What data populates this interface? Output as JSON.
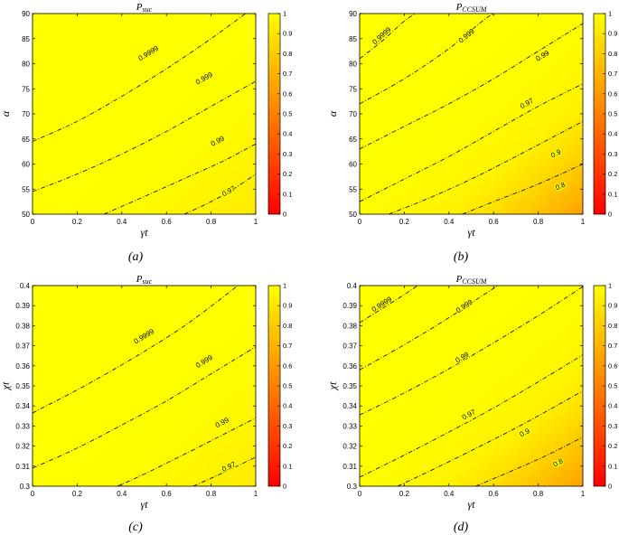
{
  "chart_data": [
    {
      "type": "contour",
      "title": "P_suc",
      "title_main": "P",
      "title_sub": "suc",
      "xlabel": "γt",
      "ylabel": "α",
      "caption": "(a)",
      "xlim": [
        0,
        1
      ],
      "ylim": [
        50,
        90
      ],
      "xticks": [
        0,
        0.2,
        0.4,
        0.6,
        0.8,
        1
      ],
      "xtick_labels": [
        "0",
        "0.2",
        "0.4",
        "0.6",
        "0.8",
        "1"
      ],
      "yticks": [
        50,
        55,
        60,
        65,
        70,
        75,
        80,
        85,
        90
      ],
      "ytick_labels": [
        "50",
        "55",
        "60",
        "65",
        "70",
        "75",
        "80",
        "85",
        "90"
      ],
      "colorbar": {
        "range": [
          0,
          1
        ],
        "ticks": [
          0,
          0.1,
          0.2,
          0.3,
          0.4,
          0.5,
          0.6,
          0.7,
          0.8,
          0.9,
          1
        ],
        "tick_labels": [
          "0",
          "0.1",
          "0.2",
          "0.3",
          "0.4",
          "0.5",
          "0.6",
          "0.7",
          "0.8",
          "0.9",
          "1"
        ],
        "colormap": "autumn",
        "low_color": "#ff0000",
        "high_color": "#ffff00"
      },
      "contours": [
        {
          "level": "0.9999",
          "points": [
            [
              0,
              64.5
            ],
            [
              0.2,
              68.5
            ],
            [
              0.4,
              73.5
            ],
            [
              0.6,
              79
            ],
            [
              0.8,
              85
            ],
            [
              1,
              91.5
            ]
          ],
          "label_at": [
            0.52,
            82
          ]
        },
        {
          "level": "0.999",
          "points": [
            [
              0,
              54.5
            ],
            [
              0.2,
              58
            ],
            [
              0.4,
              62
            ],
            [
              0.6,
              66.5
            ],
            [
              0.8,
              71.5
            ],
            [
              1,
              76.5
            ]
          ],
          "label_at": [
            0.77,
            77
          ]
        },
        {
          "level": "0.99",
          "points": [
            [
              0.32,
              50
            ],
            [
              0.5,
              53.5
            ],
            [
              0.7,
              57.5
            ],
            [
              0.85,
              60.5
            ],
            [
              1,
              64
            ]
          ],
          "label_at": [
            0.83,
            64.5
          ]
        },
        {
          "level": "0.97",
          "points": [
            [
              0.68,
              50
            ],
            [
              0.8,
              52.5
            ],
            [
              0.9,
              55
            ],
            [
              1,
              58
            ]
          ],
          "label_at": [
            0.88,
            54.5
          ]
        }
      ]
    },
    {
      "type": "contour",
      "title": "P_CCSUM",
      "title_main": "P",
      "title_sub": "CCSUM",
      "xlabel": "γt",
      "ylabel": "α",
      "caption": "(b)",
      "xlim": [
        0,
        1
      ],
      "ylim": [
        50,
        90
      ],
      "xticks": [
        0,
        0.2,
        0.4,
        0.6,
        0.8,
        1
      ],
      "xtick_labels": [
        "0",
        "0.2",
        "0.4",
        "0.6",
        "0.8",
        "1"
      ],
      "yticks": [
        50,
        55,
        60,
        65,
        70,
        75,
        80,
        85,
        90
      ],
      "ytick_labels": [
        "50",
        "55",
        "60",
        "65",
        "70",
        "75",
        "80",
        "85",
        "90"
      ],
      "colorbar": {
        "range": [
          0,
          1
        ],
        "ticks": [
          0,
          0.1,
          0.2,
          0.3,
          0.4,
          0.5,
          0.6,
          0.7,
          0.8,
          0.9,
          1
        ],
        "tick_labels": [
          "0",
          "0.1",
          "0.2",
          "0.3",
          "0.4",
          "0.5",
          "0.6",
          "0.7",
          "0.8",
          "0.9",
          "1"
        ],
        "colormap": "autumn",
        "low_color": "#ff0000",
        "high_color": "#ffff00"
      },
      "contours": [
        {
          "level": "0.9999",
          "points": [
            [
              0,
              81
            ],
            [
              0.1,
              84.5
            ],
            [
              0.2,
              88.5
            ],
            [
              0.25,
              90
            ]
          ],
          "label_at": [
            0.1,
            85.5
          ]
        },
        {
          "level": "0.999",
          "points": [
            [
              0,
              72
            ],
            [
              0.2,
              77
            ],
            [
              0.4,
              83
            ],
            [
              0.55,
              88.5
            ],
            [
              0.6,
              90
            ]
          ],
          "label_at": [
            0.48,
            85.5
          ]
        },
        {
          "level": "0.99",
          "points": [
            [
              0,
              63
            ],
            [
              0.2,
              67.5
            ],
            [
              0.4,
              72
            ],
            [
              0.6,
              77
            ],
            [
              0.8,
              82.5
            ],
            [
              1,
              88
            ]
          ],
          "label_at": [
            0.82,
            81.5
          ]
        },
        {
          "level": "0.97",
          "points": [
            [
              0,
              52.5
            ],
            [
              0.2,
              57
            ],
            [
              0.4,
              61.5
            ],
            [
              0.6,
              66.5
            ],
            [
              0.8,
              71.5
            ],
            [
              1,
              76
            ]
          ],
          "label_at": [
            0.75,
            72
          ]
        },
        {
          "level": "0.9",
          "points": [
            [
              0.13,
              50
            ],
            [
              0.3,
              53
            ],
            [
              0.5,
              57
            ],
            [
              0.7,
              61.5
            ],
            [
              0.85,
              65
            ],
            [
              1,
              68.5
            ]
          ],
          "label_at": [
            0.88,
            62
          ]
        },
        {
          "level": "0.8",
          "points": [
            [
              0.46,
              50
            ],
            [
              0.6,
              52.5
            ],
            [
              0.8,
              56
            ],
            [
              1,
              60
            ]
          ],
          "label_at": [
            0.9,
            55.5
          ]
        }
      ],
      "shading": "orange toward lower-right"
    },
    {
      "type": "contour",
      "title": "P_suc",
      "title_main": "P",
      "title_sub": "suc",
      "xlabel": "γt",
      "ylabel": "χt",
      "caption": "(c)",
      "xlim": [
        0,
        1
      ],
      "ylim": [
        0.3,
        0.4
      ],
      "xticks": [
        0,
        0.2,
        0.4,
        0.6,
        0.8,
        1
      ],
      "xtick_labels": [
        "0",
        "0.2",
        "0.4",
        "0.6",
        "0.8",
        "1"
      ],
      "yticks": [
        0.3,
        0.31,
        0.32,
        0.33,
        0.34,
        0.35,
        0.36,
        0.37,
        0.38,
        0.39,
        0.4
      ],
      "ytick_labels": [
        "0.3",
        "0.31",
        "0.32",
        "0.33",
        "0.34",
        "0.35",
        "0.36",
        "0.37",
        "0.38",
        "0.39",
        "0.4"
      ],
      "colorbar": {
        "range": [
          0,
          1
        ],
        "ticks": [
          0,
          0.1,
          0.2,
          0.3,
          0.4,
          0.5,
          0.6,
          0.7,
          0.8,
          0.9,
          1
        ],
        "tick_labels": [
          "0",
          "0.1",
          "0.2",
          "0.3",
          "0.4",
          "0.5",
          "0.6",
          "0.7",
          "0.8",
          "0.9",
          "1"
        ],
        "colormap": "autumn",
        "low_color": "#ff0000",
        "high_color": "#ffff00"
      },
      "contours": [
        {
          "level": "0.9999",
          "points": [
            [
              0,
              0.3365
            ],
            [
              0.2,
              0.348
            ],
            [
              0.4,
              0.3605
            ],
            [
              0.6,
              0.374
            ],
            [
              0.75,
              0.3855
            ],
            [
              0.92,
              0.4
            ]
          ],
          "label_at": [
            0.5,
            0.3745
          ]
        },
        {
          "level": "0.999",
          "points": [
            [
              0,
              0.309
            ],
            [
              0.2,
              0.319
            ],
            [
              0.4,
              0.3305
            ],
            [
              0.6,
              0.3425
            ],
            [
              0.8,
              0.356
            ],
            [
              1,
              0.3695
            ]
          ],
          "label_at": [
            0.77,
            0.362
          ]
        },
        {
          "level": "0.99",
          "points": [
            [
              0.38,
              0.3
            ],
            [
              0.5,
              0.306
            ],
            [
              0.7,
              0.317
            ],
            [
              0.85,
              0.3255
            ],
            [
              1,
              0.334
            ]
          ],
          "label_at": [
            0.85,
            0.3315
          ]
        },
        {
          "level": "0.97",
          "points": [
            [
              0.72,
              0.3
            ],
            [
              0.85,
              0.3065
            ],
            [
              1,
              0.3145
            ]
          ],
          "label_at": [
            0.88,
            0.3095
          ]
        }
      ]
    },
    {
      "type": "contour",
      "title": "P_CCSUM",
      "title_main": "P",
      "title_sub": "CCSUM",
      "xlabel": "γt",
      "ylabel": "χt",
      "caption": "(d)",
      "xlim": [
        0,
        1
      ],
      "ylim": [
        0.3,
        0.4
      ],
      "xticks": [
        0,
        0.2,
        0.4,
        0.6,
        0.8,
        1
      ],
      "xtick_labels": [
        "0",
        "0.2",
        "0.4",
        "0.6",
        "0.8",
        "1"
      ],
      "yticks": [
        0.3,
        0.31,
        0.32,
        0.33,
        0.34,
        0.35,
        0.36,
        0.37,
        0.38,
        0.39,
        0.4
      ],
      "ytick_labels": [
        "0.3",
        "0.31",
        "0.32",
        "0.33",
        "0.34",
        "0.35",
        "0.36",
        "0.37",
        "0.38",
        "0.39",
        "0.4"
      ],
      "colorbar": {
        "range": [
          0,
          1
        ],
        "ticks": [
          0,
          0.1,
          0.2,
          0.3,
          0.4,
          0.5,
          0.6,
          0.7,
          0.8,
          0.9,
          1
        ],
        "tick_labels": [
          "0",
          "0.1",
          "0.2",
          "0.3",
          "0.4",
          "0.5",
          "0.6",
          "0.7",
          "0.8",
          "0.9",
          "1"
        ],
        "colormap": "autumn",
        "low_color": "#ff0000",
        "high_color": "#ffff00"
      },
      "contours": [
        {
          "level": "0.9999",
          "points": [
            [
              0,
              0.3815
            ],
            [
              0.1,
              0.3885
            ],
            [
              0.2,
              0.3955
            ],
            [
              0.26,
              0.4
            ]
          ],
          "label_at": [
            0.1,
            0.3905
          ]
        },
        {
          "level": "0.999",
          "points": [
            [
              0,
              0.358
            ],
            [
              0.2,
              0.3705
            ],
            [
              0.4,
              0.384
            ],
            [
              0.55,
              0.395
            ],
            [
              0.62,
              0.4
            ]
          ],
          "label_at": [
            0.47,
            0.3895
          ]
        },
        {
          "level": "0.99",
          "points": [
            [
              0,
              0.3355
            ],
            [
              0.2,
              0.3465
            ],
            [
              0.4,
              0.3585
            ],
            [
              0.6,
              0.3715
            ],
            [
              0.8,
              0.385
            ],
            [
              1,
              0.3995
            ]
          ],
          "label_at": [
            0.46,
            0.364
          ]
        },
        {
          "level": "0.97",
          "points": [
            [
              0,
              0.3045
            ],
            [
              0.2,
              0.3155
            ],
            [
              0.4,
              0.327
            ],
            [
              0.6,
              0.339
            ],
            [
              0.8,
              0.352
            ],
            [
              1,
              0.3655
            ]
          ],
          "label_at": [
            0.49,
            0.3355
          ]
        },
        {
          "level": "0.9",
          "points": [
            [
              0.17,
              0.3
            ],
            [
              0.35,
              0.3095
            ],
            [
              0.55,
              0.3205
            ],
            [
              0.75,
              0.332
            ],
            [
              1,
              0.3475
            ]
          ],
          "label_at": [
            0.74,
            0.3265
          ]
        },
        {
          "level": "0.8",
          "points": [
            [
              0.52,
              0.3
            ],
            [
              0.7,
              0.3085
            ],
            [
              0.85,
              0.316
            ],
            [
              1,
              0.3245
            ]
          ],
          "label_at": [
            0.89,
            0.3115
          ]
        }
      ],
      "shading": "orange toward lower-right"
    }
  ]
}
